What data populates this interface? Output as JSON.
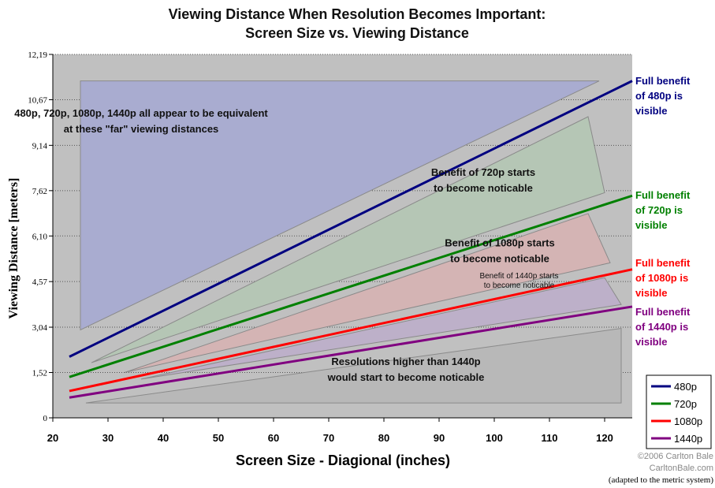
{
  "chart_data": {
    "type": "line",
    "title": "Viewing Distance When Resolution Becomes Important:",
    "subtitle": "Screen Size vs. Viewing Distance",
    "xlabel": "Screen Size - Diagional (inches)",
    "ylabel": "Viewing Distance [meters]",
    "xlim": [
      20,
      125
    ],
    "ylim": [
      0,
      12.19
    ],
    "x_ticks": [
      20,
      30,
      40,
      50,
      60,
      70,
      80,
      90,
      100,
      110,
      120
    ],
    "y_ticks": [
      0,
      1.52,
      3.04,
      4.57,
      6.1,
      7.62,
      9.14,
      10.67,
      12.19
    ],
    "y_tick_labels": [
      "0",
      "1,52",
      "3,04",
      "4,57",
      "6,10",
      "7,62",
      "9,14",
      "10,67",
      "12,19"
    ],
    "grid": "horizontal dotted",
    "legend_position": "bottom-right",
    "series": [
      {
        "name": "480p",
        "color": "#000080",
        "x": [
          23,
          125
        ],
        "y": [
          2.05,
          11.3
        ]
      },
      {
        "name": "720p",
        "color": "#008000",
        "x": [
          23,
          125
        ],
        "y": [
          1.37,
          7.45
        ]
      },
      {
        "name": "1080p",
        "color": "#ff0000",
        "x": [
          23,
          125
        ],
        "y": [
          0.9,
          4.98
        ]
      },
      {
        "name": "1440p",
        "color": "#800080",
        "x": [
          23,
          125
        ],
        "y": [
          0.68,
          3.73
        ]
      }
    ],
    "regions": [
      {
        "name": "far",
        "fill": "#a9acd0",
        "points": [
          [
            25,
            2.95
          ],
          [
            25,
            11.3
          ],
          [
            119,
            11.3
          ]
        ]
      },
      {
        "name": "720p",
        "fill": "#b5c6b5",
        "points": [
          [
            27,
            1.85
          ],
          [
            117,
            10.1
          ],
          [
            120,
            7.55
          ]
        ]
      },
      {
        "name": "1080p",
        "fill": "#d4b4b4",
        "points": [
          [
            33,
            1.52
          ],
          [
            117,
            6.85
          ],
          [
            121,
            5.2
          ]
        ]
      },
      {
        "name": "1440p",
        "fill": "#bdb0c9",
        "points": [
          [
            36,
            1.3
          ],
          [
            120,
            4.7
          ],
          [
            123,
            3.8
          ]
        ]
      },
      {
        "name": "higher",
        "fill": "#b8b8b8",
        "points": [
          [
            26,
            0.5
          ],
          [
            123,
            0.5
          ],
          [
            123,
            3.0
          ]
        ]
      }
    ],
    "annotations": [
      {
        "lines": [
          "480p, 720p, 1080p, 1440p all appear to be equivalent",
          "at these \"far\" viewing distances"
        ],
        "x": 36,
        "y": 10.1,
        "size": "normal"
      },
      {
        "lines": [
          "Benefit of 720p starts",
          "to become noticable"
        ],
        "x": 98,
        "y": 8.12,
        "size": "normal"
      },
      {
        "lines": [
          "Benefit of 1080p starts",
          "to become noticable"
        ],
        "x": 101,
        "y": 5.75,
        "size": "normal"
      },
      {
        "lines": [
          "Benefit of 1440p starts",
          "to become noticable"
        ],
        "x": 104.5,
        "y": 4.68,
        "size": "small"
      },
      {
        "lines": [
          "Resolutions higher than 1440p",
          "would start to become noticable"
        ],
        "x": 84,
        "y": 1.77,
        "size": "normal"
      }
    ],
    "side_labels": [
      {
        "lines": [
          "Full benefit",
          "of 480p is",
          "visible"
        ],
        "color": "#000080"
      },
      {
        "lines": [
          "Full benefit",
          "of 720p is",
          "visible"
        ],
        "color": "#008000"
      },
      {
        "lines": [
          "Full benefit",
          "of 1080p is",
          "visible"
        ],
        "color": "#ff0000"
      },
      {
        "lines": [
          "Full benefit",
          "of 1440p is",
          "visible"
        ],
        "color": "#800080"
      }
    ]
  },
  "credits": {
    "line1": "©2006 Carlton Bale",
    "line2": "CarltonBale.com",
    "line3": "(adapted to the metric system)"
  }
}
